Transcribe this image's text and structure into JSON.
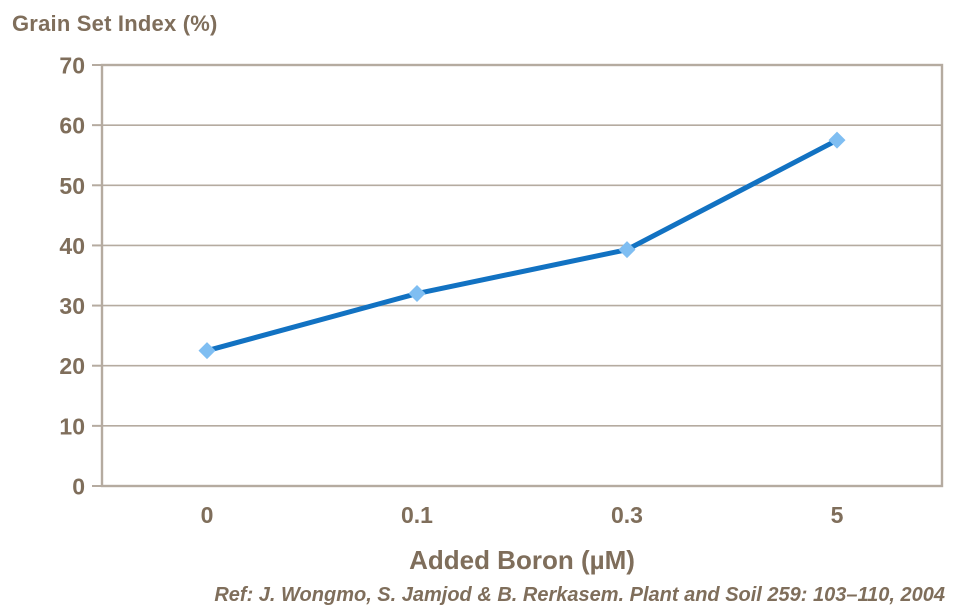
{
  "chart_data": {
    "type": "line",
    "title": "Grain Set Index (%)",
    "xlabel": "Added Boron (µM)",
    "ylabel": "",
    "categories": [
      "0",
      "0.1",
      "0.3",
      "5"
    ],
    "series": [
      {
        "name": "Grain Set Index (%)",
        "values": [
          22.5,
          32,
          39.3,
          57.5
        ]
      }
    ],
    "ylim": [
      0,
      70
    ],
    "ytick_step": 10,
    "yticks": [
      0,
      10,
      20,
      30,
      40,
      50,
      60,
      70
    ],
    "grid": "horizontal",
    "legend": "none",
    "marker_shape": "diamond",
    "colors": {
      "line": "#1272C2",
      "marker": "#7FBEF2",
      "axis": "#B5ABA0",
      "text": "#7F6E5B",
      "background": "#FFFFFF"
    }
  },
  "reference": "Ref: J. Wongmo, S. Jamjod & B. Rerkasem. Plant and Soil 259: 103–110, 2004"
}
